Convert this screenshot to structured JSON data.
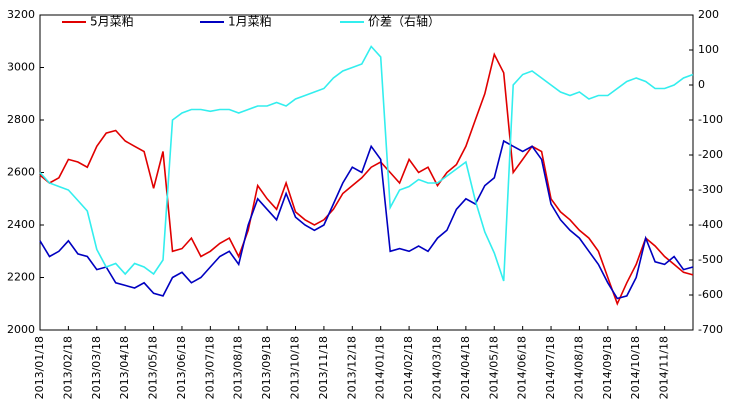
{
  "chart_data": {
    "type": "line",
    "categories": [
      "2013/01/18",
      null,
      null,
      "2013/02/18",
      null,
      null,
      "2013/03/18",
      null,
      null,
      "2013/04/18",
      null,
      null,
      "2013/05/18",
      null,
      null,
      "2013/06/18",
      null,
      null,
      "2013/07/18",
      null,
      null,
      "2013/08/18",
      null,
      null,
      "2013/09/18",
      null,
      null,
      "2013/10/18",
      null,
      null,
      "2013/11/18",
      null,
      null,
      "2013/12/18",
      null,
      null,
      "2014/01/18",
      null,
      null,
      "2014/02/18",
      null,
      null,
      "2014/03/18",
      null,
      null,
      "2014/04/18",
      null,
      null,
      "2014/05/18",
      null,
      null,
      "2014/06/18",
      null,
      null,
      "2014/07/18",
      null,
      null,
      "2014/08/18",
      null,
      null,
      "2014/09/18",
      null,
      null,
      "2014/10/18",
      null,
      null,
      "2014/11/18",
      null,
      null,
      null
    ],
    "series": [
      {
        "name": "5月菜粕",
        "color": "#e00000",
        "values": [
          2590,
          2560,
          2580,
          2650,
          2640,
          2620,
          2700,
          2750,
          2760,
          2720,
          2700,
          2680,
          2540,
          2680,
          2300,
          2310,
          2350,
          2280,
          2300,
          2330,
          2350,
          2280,
          2380,
          2550,
          2500,
          2460,
          2560,
          2450,
          2420,
          2400,
          2420,
          2460,
          2520,
          2550,
          2580,
          2620,
          2640,
          2600,
          2560,
          2650,
          2600,
          2620,
          2550,
          2600,
          2630,
          2700,
          2800,
          2900,
          3050,
          2980,
          2600,
          2650,
          2700,
          2680,
          2500,
          2450,
          2420,
          2380,
          2350,
          2300,
          2200,
          2100,
          2180,
          2250,
          2350,
          2320,
          2280,
          2250,
          2220,
          2210
        ]
      },
      {
        "name": "1月菜粕",
        "color": "#0000c0",
        "values": [
          2340,
          2280,
          2300,
          2340,
          2290,
          2280,
          2230,
          2240,
          2180,
          2170,
          2160,
          2180,
          2140,
          2130,
          2200,
          2220,
          2180,
          2200,
          2240,
          2280,
          2300,
          2250,
          2400,
          2500,
          2460,
          2420,
          2520,
          2430,
          2400,
          2380,
          2400,
          2480,
          2560,
          2620,
          2600,
          2700,
          2650,
          2300,
          2310,
          2300,
          2320,
          2300,
          2350,
          2380,
          2460,
          2500,
          2480,
          2550,
          2580,
          2720,
          2700,
          2680,
          2700,
          2650,
          2480,
          2420,
          2380,
          2350,
          2300,
          2250,
          2180,
          2120,
          2130,
          2200,
          2350,
          2260,
          2250,
          2280,
          2230,
          2240
        ]
      },
      {
        "name": "价差（右轴）",
        "color": "#33eeee",
        "axis": "y2",
        "values": [
          -250,
          -280,
          -290,
          -300,
          -330,
          -360,
          -470,
          -520,
          -510,
          -540,
          -510,
          -520,
          -540,
          -500,
          -100,
          -80,
          -70,
          -70,
          -75,
          -70,
          -70,
          -80,
          -70,
          -60,
          -60,
          -50,
          -60,
          -40,
          -30,
          -20,
          -10,
          20,
          40,
          50,
          60,
          110,
          80,
          -350,
          -300,
          -290,
          -270,
          -280,
          -280,
          -260,
          -240,
          -220,
          -330,
          -420,
          -480,
          -560,
          0,
          30,
          40,
          20,
          0,
          -20,
          -30,
          -20,
          -40,
          -30,
          -30,
          -10,
          10,
          20,
          10,
          -10,
          -10,
          0,
          20,
          30
        ]
      }
    ],
    "ylim": [
      2000,
      3200
    ],
    "yticks": [
      2000,
      2200,
      2400,
      2600,
      2800,
      3000,
      3200
    ],
    "y2lim": [
      -700,
      200
    ],
    "y2ticks": [
      -700,
      -600,
      -500,
      -400,
      -300,
      -200,
      -100,
      0,
      100,
      200
    ],
    "legend": "top-left"
  }
}
